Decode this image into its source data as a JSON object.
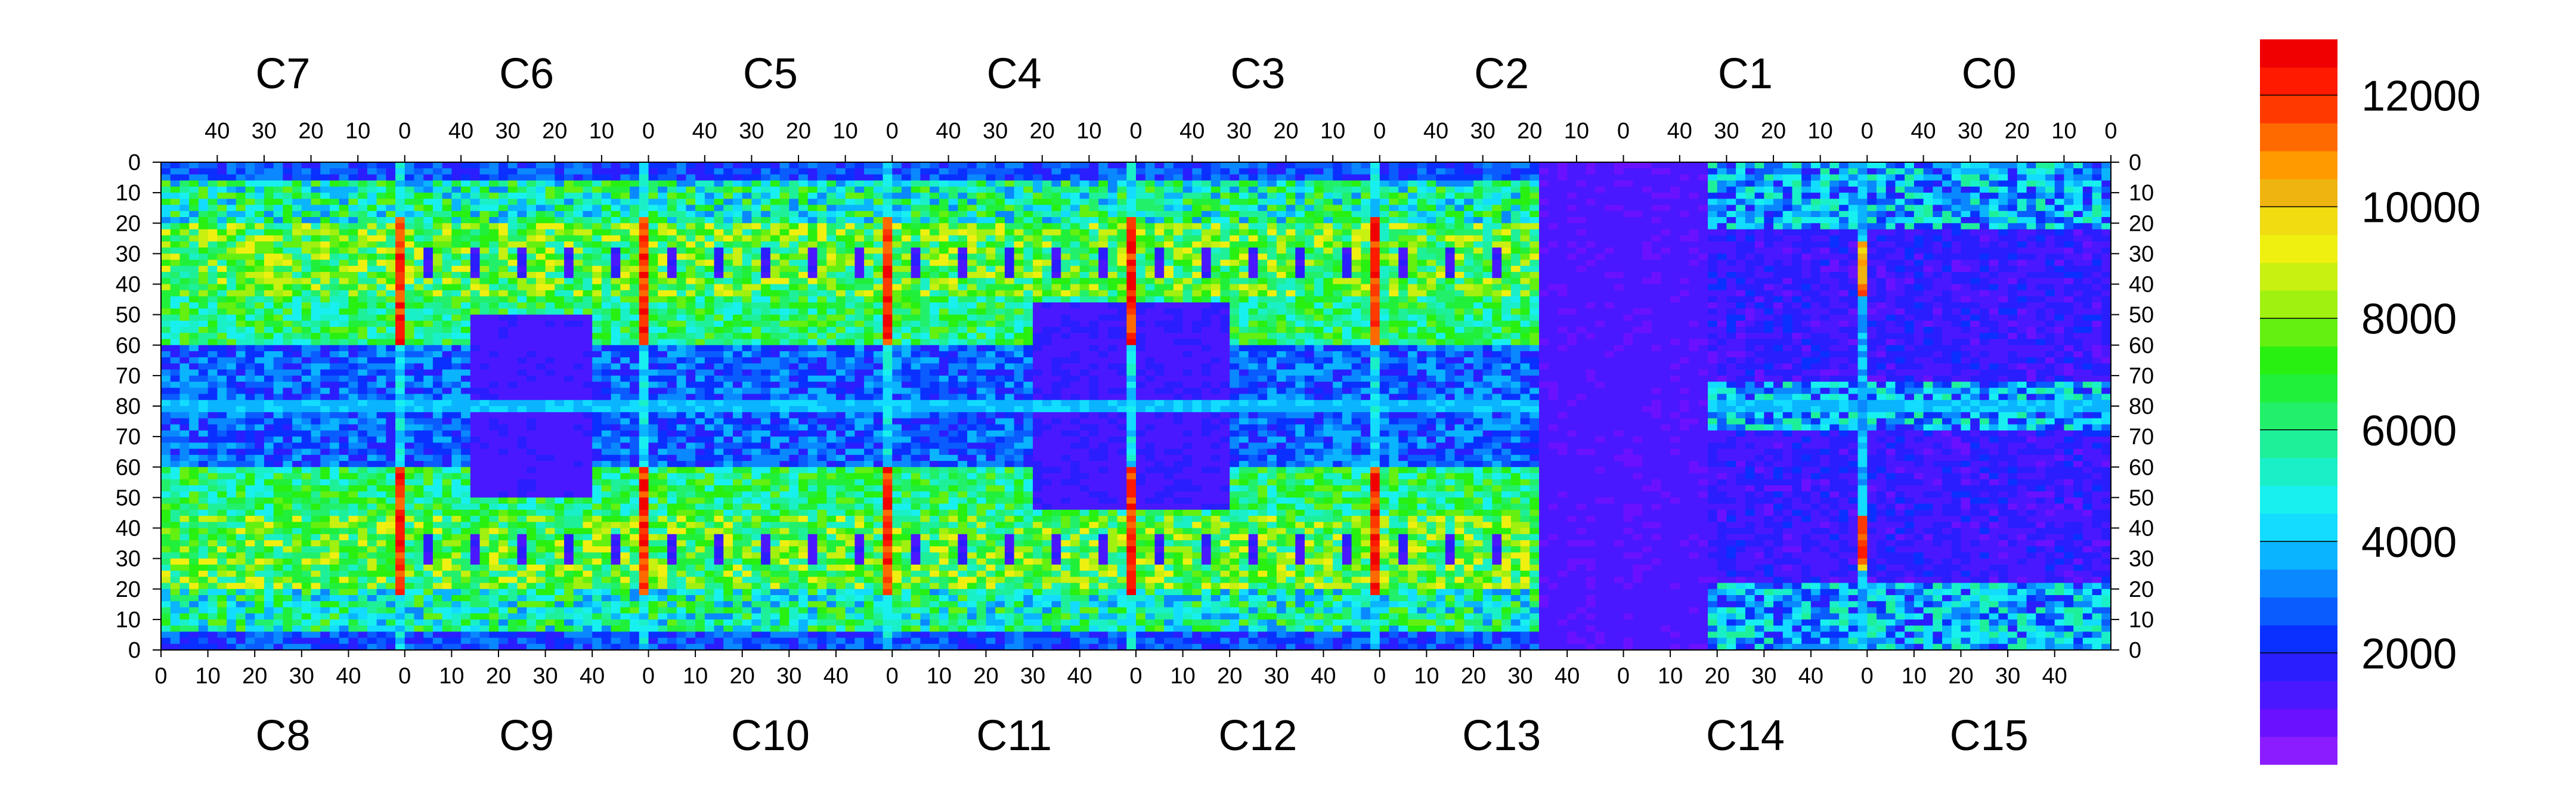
{
  "chart_data": {
    "type": "heatmap",
    "title": "",
    "xlabel": "",
    "ylabel": "",
    "top_chips": [
      "C7",
      "C6",
      "C5",
      "C4",
      "C3",
      "C2",
      "C1",
      "C0"
    ],
    "bottom_chips": [
      "C8",
      "C9",
      "C10",
      "C11",
      "C12",
      "C13",
      "C14",
      "C15"
    ],
    "top_x_ticks": [
      "40",
      "30",
      "20",
      "10",
      "0"
    ],
    "bottom_x_ticks": [
      "0",
      "10",
      "20",
      "30",
      "40"
    ],
    "y_ticks": [
      "0",
      "10",
      "20",
      "30",
      "40",
      "50",
      "60",
      "70",
      "80",
      "70",
      "60",
      "50",
      "40",
      "30",
      "20",
      "10",
      "0"
    ],
    "z_range": [
      0,
      13000
    ],
    "z_tick_labels": [
      "2000",
      "4000",
      "6000",
      "8000",
      "10000",
      "12000"
    ],
    "z_tick_values": [
      2000,
      4000,
      6000,
      8000,
      10000,
      12000
    ],
    "colorscale": [
      "#8a1cff",
      "#6a12ff",
      "#4a18ff",
      "#2a1eff",
      "#0a30ff",
      "#0a5cff",
      "#0a88ff",
      "#0ab4ff",
      "#12dcff",
      "#18f0f0",
      "#1af0c8",
      "#1ef09a",
      "#22f06a",
      "#20f03a",
      "#28f010",
      "#64f010",
      "#a0f010",
      "#c8f010",
      "#f0f010",
      "#f0dc10",
      "#f0b410",
      "#ff9a00",
      "#ff6a00",
      "#ff3a00",
      "#ff1a00",
      "#f00000"
    ],
    "chip_grid": {
      "cols_per_chip": 52,
      "rows_per_half": 80
    },
    "features": {
      "red_stripes_at_chip_boundaries": true,
      "low_activity_region": "C13/C14 boundary and C14-C15 bottom-right region",
      "high_activity_region": "C7-C12 upper and lower bands",
      "uniform_row_line": 80
    }
  }
}
